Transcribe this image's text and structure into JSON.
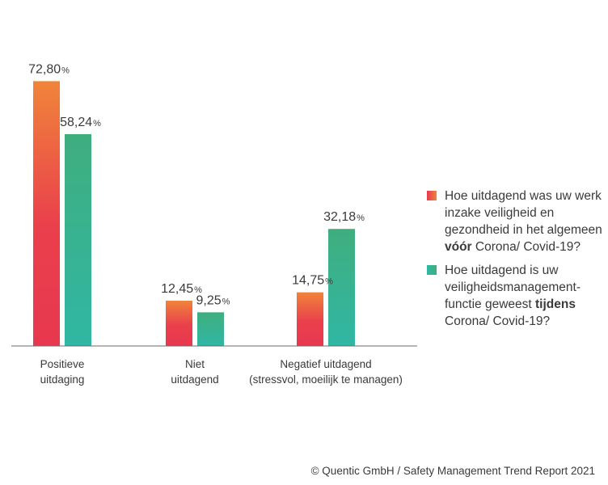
{
  "chart_data": {
    "type": "bar",
    "categories": [
      [
        "Positieve",
        "uitdaging"
      ],
      [
        "Niet",
        "uitdagend"
      ],
      [
        "Negatief uitdagend",
        "(stressvol, moeilijk te managen)"
      ]
    ],
    "series": [
      {
        "name": "Hoe uitdagend was uw werk inzake veiligheid en gezondheid in het algemeen vóór Corona/ Covid-19?",
        "values": [
          72.8,
          12.45,
          14.75
        ],
        "labels": [
          "72,80",
          "12,45",
          "14,75"
        ],
        "colors": [
          "#e8384f",
          "#f0843a"
        ]
      },
      {
        "name": "Hoe uitdagend is uw veiligheidsmanagement-functie geweest tijdens Corona/ Covid-19?",
        "values": [
          58.24,
          9.25,
          32.18
        ],
        "labels": [
          "58,24",
          "9,25",
          "32,18"
        ],
        "colors": [
          "#2fb8a2",
          "#3fae7e"
        ]
      }
    ],
    "unit": "%",
    "ylim": [
      0,
      80
    ],
    "grid": false,
    "legend": "right"
  },
  "legend": {
    "item1": {
      "before": "Hoe uitdagend was uw werk inzake veiligheid en gezondheid in het algemeen ",
      "bold": "vóór",
      "after": " Corona/ Covid-19?"
    },
    "item2": {
      "before": "Hoe uitdagend is uw veiligheidsmanagement-functie geweest ",
      "bold": "tijdens",
      "after": " Corona/ Covid-19?"
    }
  },
  "footer": "© Quentic GmbH / Safety Management Trend Report 2021"
}
